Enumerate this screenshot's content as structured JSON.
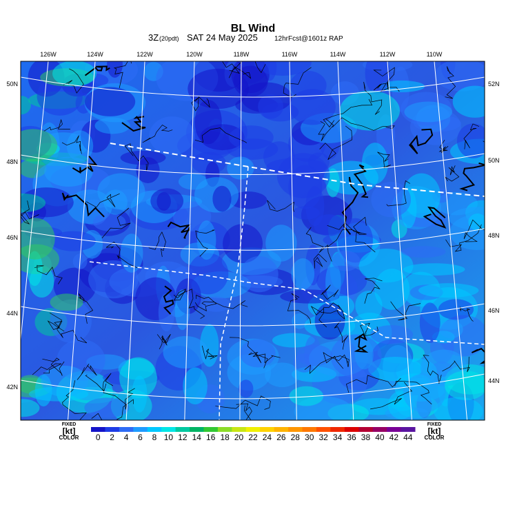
{
  "header": {
    "title": "BL Wind",
    "time": "3Z",
    "local_time": "(20pdt)",
    "date": "SAT 24 May 2025",
    "forecast": "12hrFcst@1601z RAP"
  },
  "map": {
    "lon_labels": [
      "126W",
      "124W",
      "122W",
      "120W",
      "118W",
      "116W",
      "114W",
      "112W",
      "110W"
    ],
    "lat_labels_left": [
      "50N",
      "48N",
      "46N",
      "44N",
      "42N"
    ],
    "lat_labels_right": [
      "52N",
      "50N",
      "48N",
      "46N",
      "44N"
    ]
  },
  "colorbar": {
    "unit": "[kt]",
    "fixed": "FIXED",
    "color_label": "COLOR",
    "values": [
      0,
      2,
      4,
      6,
      8,
      10,
      12,
      14,
      16,
      18,
      20,
      22,
      24,
      26,
      28,
      30,
      32,
      34,
      36,
      38,
      40,
      42,
      44
    ],
    "colors": [
      "#1414c8",
      "#1e3ce6",
      "#2e6cf5",
      "#1e9cff",
      "#00c8ff",
      "#00e6e6",
      "#00c8a0",
      "#00b464",
      "#32c832",
      "#8cdc28",
      "#c8e614",
      "#f0f000",
      "#ffd200",
      "#ffb400",
      "#ff9600",
      "#ff7800",
      "#ff5000",
      "#f02800",
      "#dc0000",
      "#b40032",
      "#960064",
      "#780096",
      "#5a14a0"
    ]
  }
}
